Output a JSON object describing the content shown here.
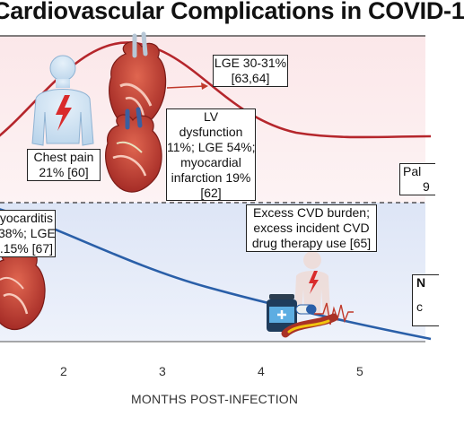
{
  "title": "Cardiovascular Complications in COVID-1",
  "top_boxes": {
    "lge": [
      "LGE 30-31%",
      "[63,64]"
    ],
    "chest_pain": [
      "Chest pain",
      "21% [60]"
    ],
    "lv": [
      "LV",
      "dysfunction",
      "11%; LGE 54%;",
      "myocardial",
      "infarction 19%",
      "[62]"
    ],
    "pal": [
      "Pal",
      "9"
    ]
  },
  "bottom_boxes": {
    "myocarditis": [
      "yocarditis",
      "38%; LGE",
      ".15% [67]"
    ],
    "cvd": [
      "Excess CVD burden;",
      "excess incident CVD",
      "drug therapy use [65]"
    ],
    "right": [
      "N",
      "c"
    ]
  },
  "x_axis": {
    "label": "MONTHS POST-INFECTION",
    "ticks": [
      "2",
      "3",
      "4",
      "5"
    ]
  },
  "colors": {
    "top_band": "#fbe3e5",
    "bottom_band": "#e3e9f7",
    "top_curve": "#b5262c",
    "bottom_curve": "#2a5fa8",
    "heart_red": "#c0392b",
    "body_blue": "#cfe3f3",
    "bolt": "#d92b2b"
  },
  "icons": [
    "human-figure-icon",
    "lightning-bolt-icon",
    "heart-icon",
    "medicine-bottle-icon",
    "pill-icon",
    "artery-icon",
    "ecg-icon"
  ]
}
